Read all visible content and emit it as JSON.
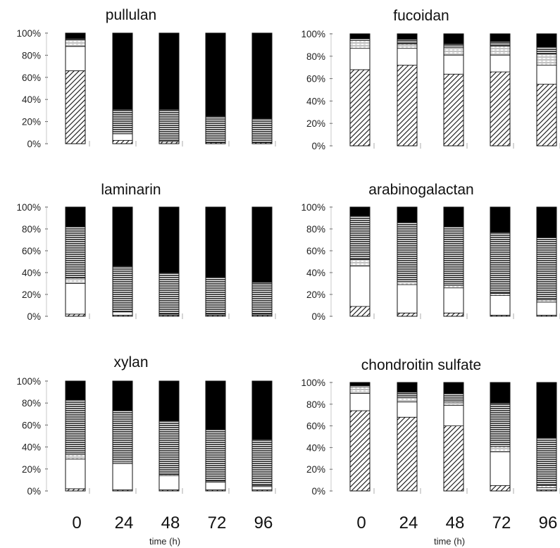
{
  "x_tick_labels": [
    "0",
    "24",
    "48",
    "72",
    "96"
  ],
  "y_tick_labels": [
    "0%",
    "20%",
    "40%",
    "60%",
    "80%",
    "100%"
  ],
  "x_axis_label": "time (h)",
  "segment_fills": {
    "diagonal": "hatched",
    "white": "#ffffff",
    "light_horizontal": "finely lined",
    "horizontal": "lined",
    "black": "#000000"
  },
  "chart_data": [
    {
      "type": "bar",
      "stacked": true,
      "title": "pullulan",
      "categories": [
        "0",
        "24",
        "48",
        "72",
        "96"
      ],
      "ylim": [
        0,
        100
      ],
      "series": [
        {
          "values": [
            66,
            3,
            2,
            1,
            1
          ]
        },
        {
          "values": [
            22,
            6,
            1,
            0,
            0
          ]
        },
        {
          "values": [
            6,
            0,
            0,
            0,
            0
          ]
        },
        {
          "values": [
            1,
            22,
            28,
            24,
            22
          ]
        },
        {
          "values": [
            5,
            69,
            69,
            75,
            77
          ]
        }
      ]
    },
    {
      "type": "bar",
      "stacked": true,
      "title": "fucoidan",
      "categories": [
        "0",
        "24",
        "48",
        "72",
        "96"
      ],
      "ylim": [
        0,
        100
      ],
      "series": [
        {
          "values": [
            68,
            72,
            64,
            66,
            55
          ]
        },
        {
          "values": [
            19,
            15,
            17,
            15,
            17
          ]
        },
        {
          "values": [
            7,
            4,
            7,
            8,
            10
          ]
        },
        {
          "values": [
            2,
            4,
            3,
            4,
            6
          ]
        },
        {
          "values": [
            4,
            5,
            9,
            7,
            12
          ]
        }
      ]
    },
    {
      "type": "bar",
      "stacked": true,
      "title": "laminarin",
      "categories": [
        "0",
        "24",
        "48",
        "72",
        "96"
      ],
      "ylim": [
        0,
        100
      ],
      "series": [
        {
          "values": [
            2,
            1,
            1,
            1,
            1
          ]
        },
        {
          "values": [
            28,
            3,
            1,
            1,
            1
          ]
        },
        {
          "values": [
            5,
            0,
            0,
            0,
            0
          ]
        },
        {
          "values": [
            47,
            42,
            38,
            34,
            29
          ]
        },
        {
          "values": [
            18,
            54,
            60,
            64,
            69
          ]
        }
      ]
    },
    {
      "type": "bar",
      "stacked": true,
      "title": "arabinogalactan",
      "categories": [
        "0",
        "24",
        "48",
        "72",
        "96"
      ],
      "ylim": [
        0,
        100
      ],
      "series": [
        {
          "values": [
            9,
            3,
            3,
            1,
            1
          ]
        },
        {
          "values": [
            37,
            26,
            23,
            18,
            12
          ]
        },
        {
          "values": [
            6,
            3,
            2,
            2,
            2
          ]
        },
        {
          "values": [
            40,
            54,
            54,
            56,
            57
          ]
        },
        {
          "values": [
            8,
            14,
            18,
            23,
            28
          ]
        }
      ]
    },
    {
      "type": "bar",
      "stacked": true,
      "title": "xylan",
      "categories": [
        "0",
        "24",
        "48",
        "72",
        "96"
      ],
      "ylim": [
        0,
        100
      ],
      "series": [
        {
          "values": [
            2,
            1,
            1,
            1,
            1
          ]
        },
        {
          "values": [
            27,
            24,
            13,
            7,
            3
          ]
        },
        {
          "values": [
            4,
            2,
            1,
            1,
            1
          ]
        },
        {
          "values": [
            50,
            46,
            49,
            47,
            42
          ]
        },
        {
          "values": [
            17,
            27,
            36,
            44,
            53
          ]
        }
      ]
    },
    {
      "type": "bar",
      "stacked": true,
      "title": "chondroitin sulfate",
      "categories": [
        "0",
        "24",
        "48",
        "72",
        "96"
      ],
      "ylim": [
        0,
        100
      ],
      "series": [
        {
          "values": [
            74,
            68,
            60,
            5,
            1
          ]
        },
        {
          "values": [
            16,
            14,
            19,
            31,
            2
          ]
        },
        {
          "values": [
            6,
            4,
            3,
            5,
            2
          ]
        },
        {
          "values": [
            1,
            5,
            8,
            40,
            44
          ]
        },
        {
          "values": [
            3,
            9,
            10,
            19,
            51
          ]
        }
      ]
    }
  ]
}
